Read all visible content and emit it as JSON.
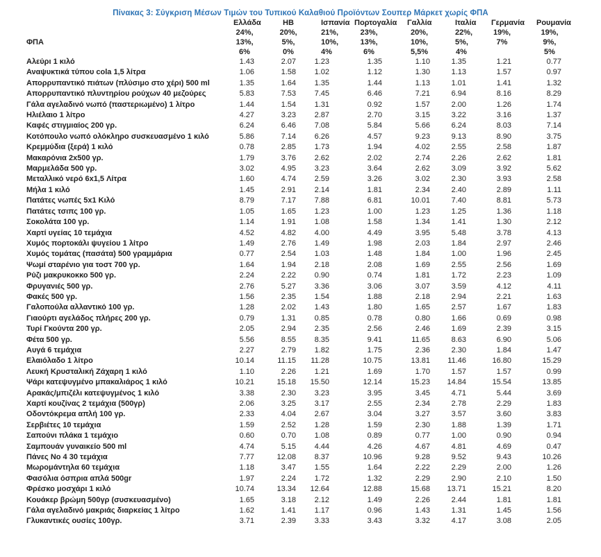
{
  "title": "Πίνακας 3: Σύγκριση Μέσων Τιμών του Τυπικού Καλαθιού Προϊόντων Σουπερ Μάρκετ χωρίς ΦΠΑ",
  "vat_label": "ΦΠΑ",
  "colors": {
    "title_blue": "#2E74B5",
    "text": "#1F1F1F",
    "background": "#FFFFFF"
  },
  "table": {
    "columns": [
      {
        "name": "Ελλάδα",
        "vat": [
          "24%,",
          "13%,",
          "6%"
        ]
      },
      {
        "name": "ΗΒ",
        "vat": [
          "20%,",
          "5%,",
          "0%"
        ]
      },
      {
        "name": "Ισπανία",
        "vat": [
          "21%,",
          "10%,",
          "4%"
        ]
      },
      {
        "name": "Πορτογαλία",
        "vat": [
          "23%,",
          "13%,",
          "6%"
        ]
      },
      {
        "name": "Γαλλία",
        "vat": [
          "20%,",
          "10%,",
          "5,5%"
        ]
      },
      {
        "name": "Ιταλία",
        "vat": [
          "22%,",
          "5%,",
          "4%"
        ]
      },
      {
        "name": "Γερμανία",
        "vat": [
          "19%,",
          "7%",
          ""
        ]
      },
      {
        "name": "Ρουμανία",
        "vat": [
          "19%,",
          "9%,",
          "5%"
        ]
      }
    ],
    "rows": [
      {
        "name": "Αλεύρι 1 κιλό",
        "values": [
          "1.43",
          "2.07",
          "1.23",
          "1.35",
          "1.10",
          "1.35",
          "1.21",
          "0.77"
        ]
      },
      {
        "name": "Αναψυκτικά τύπου cola 1,5 λίτρα",
        "values": [
          "1.06",
          "1.58",
          "1.02",
          "1.12",
          "1.30",
          "1.13",
          "1.57",
          "0.97"
        ]
      },
      {
        "name": "Απορρυπαντικό πιάτων (πλύσιμο στο χέρι) 500 ml",
        "values": [
          "1.35",
          "1.64",
          "1.35",
          "1.44",
          "1.13",
          "1.01",
          "1.41",
          "1.32"
        ]
      },
      {
        "name": "Απορρυπαντικό πλυντηρίου ρούχων 40 μεζούρες",
        "values": [
          "5.83",
          "7.53",
          "7.45",
          "6.46",
          "7.21",
          "6.94",
          "8.16",
          "8.29"
        ]
      },
      {
        "name": "Γάλα αγελαδινό νωπό (παστεριωμένο) 1 λίτρο",
        "values": [
          "1.44",
          "1.54",
          "1.31",
          "0.92",
          "1.57",
          "2.00",
          "1.26",
          "1.74"
        ]
      },
      {
        "name": "Ηλιέλαιο 1 λίτρο",
        "values": [
          "4.27",
          "3.23",
          "2.87",
          "2.70",
          "3.15",
          "3.22",
          "3.16",
          "1.37"
        ]
      },
      {
        "name": "Καφές στιγμιαίος 200 γρ.",
        "values": [
          "6.24",
          "6.46",
          "7.08",
          "5.84",
          "5.66",
          "6.24",
          "8.03",
          "7.14"
        ]
      },
      {
        "name": "Κοτόπουλο νωπό ολόκληρο συσκευασμένο 1 κιλό",
        "values": [
          "5.86",
          "7.14",
          "6.26",
          "4.57",
          "9.23",
          "9.13",
          "8.90",
          "3.75"
        ]
      },
      {
        "name": "Κρεμμύδια (ξερά) 1 κιλό",
        "values": [
          "0.78",
          "2.85",
          "1.73",
          "1.94",
          "4.02",
          "2.55",
          "2.58",
          "1.87"
        ]
      },
      {
        "name": "Μακαρόνια 2x500 γρ.",
        "values": [
          "1.79",
          "3.76",
          "2.62",
          "2.02",
          "2.74",
          "2.26",
          "2.62",
          "1.81"
        ]
      },
      {
        "name": "Μαρμελάδα 500 γρ.",
        "values": [
          "3.02",
          "4.95",
          "3.23",
          "3.64",
          "2.62",
          "3.09",
          "3.92",
          "5.62"
        ]
      },
      {
        "name": "Μεταλλικό νερό 6x1,5 Λίτρα",
        "values": [
          "1.60",
          "4.74",
          "2.59",
          "3.26",
          "3.02",
          "2.30",
          "3.93",
          "2.58"
        ]
      },
      {
        "name": "Μήλα 1 κιλό",
        "values": [
          "1.45",
          "2.91",
          "2.14",
          "1.81",
          "2.34",
          "2.40",
          "2.89",
          "1.11"
        ]
      },
      {
        "name": "Πατάτες νωπές 5x1 Κιλό",
        "values": [
          "8.79",
          "7.17",
          "7.88",
          "6.81",
          "10.01",
          "7.40",
          "8.81",
          "5.73"
        ]
      },
      {
        "name": "Πατάτες τσιπς 100 γρ.",
        "values": [
          "1.05",
          "1.65",
          "1.23",
          "1.00",
          "1.23",
          "1.25",
          "1.36",
          "1.18"
        ]
      },
      {
        "name": "Σοκολάτα 100 γρ.",
        "values": [
          "1.14",
          "1.91",
          "1.08",
          "1.58",
          "1.34",
          "1.41",
          "1.30",
          "2.12"
        ]
      },
      {
        "name": "Χαρτί υγείας 10 τεμάχια",
        "values": [
          "4.52",
          "4.82",
          "4.00",
          "4.49",
          "3.95",
          "5.48",
          "3.78",
          "4.13"
        ]
      },
      {
        "name": "Χυμός πορτοκάλι ψυγείου 1 λίτρο",
        "values": [
          "1.49",
          "2.76",
          "1.49",
          "1.98",
          "2.03",
          "1.84",
          "2.97",
          "2.46"
        ]
      },
      {
        "name": "Χυμός τομάτας (πασάτα) 500 γραμμάρια",
        "values": [
          "0.77",
          "2.54",
          "1.03",
          "1.48",
          "1.84",
          "1.00",
          "1.96",
          "2.45"
        ]
      },
      {
        "name": "Ψωμί σταρένιο για τοστ 700 γρ.",
        "values": [
          "1.64",
          "1.94",
          "2.18",
          "2.08",
          "1.69",
          "2.55",
          "2.56",
          "1.69"
        ]
      },
      {
        "name": "Ρύζι μακρυκοκκο 500 γρ.",
        "values": [
          "2.24",
          "2.22",
          "0.90",
          "0.74",
          "1.81",
          "1.72",
          "2.23",
          "1.09"
        ]
      },
      {
        "name": "Φρυγανιές 500 γρ.",
        "values": [
          "2.76",
          "5.27",
          "3.36",
          "3.06",
          "3.07",
          "3.59",
          "4.12",
          "4.11"
        ]
      },
      {
        "name": "Φακές 500 γρ.",
        "values": [
          "1.56",
          "2.35",
          "1.54",
          "1.88",
          "2.18",
          "2.94",
          "2.21",
          "1.63"
        ]
      },
      {
        "name": "Γαλοπούλα αλλαντικό 100 γρ.",
        "values": [
          "1.28",
          "2.02",
          "1.43",
          "1.80",
          "1.65",
          "2.57",
          "1.67",
          "1.83"
        ]
      },
      {
        "name": "Γιαούρτι αγελάδος πλήρες 200 γρ.",
        "values": [
          "0.79",
          "1.31",
          "0.85",
          "0.78",
          "0.80",
          "1.66",
          "0.69",
          "0.98"
        ]
      },
      {
        "name": "Τυρί Γκούντα 200 γρ.",
        "values": [
          "2.05",
          "2.94",
          "2.35",
          "2.56",
          "2.46",
          "1.69",
          "2.39",
          "3.15"
        ]
      },
      {
        "name": "Φέτα 500 γρ.",
        "values": [
          "5.56",
          "8.55",
          "8.35",
          "9.41",
          "11.65",
          "8.63",
          "6.90",
          "5.06"
        ]
      },
      {
        "name": "Αυγά 6 τεμάχια",
        "values": [
          "2.27",
          "2.79",
          "1.82",
          "1.75",
          "2.36",
          "2.30",
          "1.84",
          "1.47"
        ]
      },
      {
        "name": "Ελαιόλαδο 1 λίτρο",
        "values": [
          "10.14",
          "11.15",
          "11.28",
          "10.75",
          "13.81",
          "11.46",
          "16.80",
          "15.29"
        ]
      },
      {
        "name": "Λευκή Κρυσταλική Ζάχαρη 1 κιλό",
        "values": [
          "1.10",
          "2.26",
          "1.21",
          "1.69",
          "1.70",
          "1.57",
          "1.57",
          "0.99"
        ]
      },
      {
        "name": "Ψάρι κατεψυγμένο μπακαλιάρος 1 κιλό",
        "values": [
          "10.21",
          "15.18",
          "15.50",
          "12.14",
          "15.23",
          "14.84",
          "15.54",
          "13.85"
        ]
      },
      {
        "name": "Αρακάς/μπιζέλι κατεψυγμένος 1 κιλό",
        "values": [
          "3.38",
          "2.30",
          "3.23",
          "3.95",
          "3.45",
          "4.71",
          "5.44",
          "3.69"
        ]
      },
      {
        "name": "Χαρτί κουζίνας 2 τεμάχια (500γρ)",
        "values": [
          "2.06",
          "3.25",
          "3.17",
          "2.55",
          "2.34",
          "2.78",
          "2.29",
          "1.83"
        ]
      },
      {
        "name": "Οδοντόκρεμα απλή 100 γρ.",
        "values": [
          "2.33",
          "4.04",
          "2.67",
          "3.04",
          "3.27",
          "3.57",
          "3.60",
          "3.83"
        ]
      },
      {
        "name": "Σερβιέτες 10 τεμάχια",
        "values": [
          "1.59",
          "2.52",
          "1.28",
          "1.59",
          "2.30",
          "1.88",
          "1.39",
          "1.71"
        ]
      },
      {
        "name": "Σαπούνι  πλάκα 1 τεμάχιο",
        "values": [
          "0.60",
          "0.70",
          "1.08",
          "0.89",
          "0.77",
          "1.00",
          "0.90",
          "0.94"
        ]
      },
      {
        "name": "Σαμπουάν γυναικείο 500 ml",
        "values": [
          "4.74",
          "5.15",
          "4.44",
          "4.26",
          "4.67",
          "4.81",
          "4.69",
          "0.47"
        ]
      },
      {
        "name": "Πάνες No 4 30 τεμάχια",
        "values": [
          "7.77",
          "12.08",
          "8.37",
          "10.96",
          "9.28",
          "9.52",
          "9.43",
          "10.26"
        ]
      },
      {
        "name": "Μωρομάντηλα 60 τεμάχια",
        "values": [
          "1.18",
          "3.47",
          "1.55",
          "1.64",
          "2.22",
          "2.29",
          "2.00",
          "1.26"
        ]
      },
      {
        "name": "Φασόλια όσπρια απλά 500gr",
        "values": [
          "1.97",
          "2.24",
          "1.72",
          "1.32",
          "2.29",
          "2.90",
          "2.10",
          "1.50"
        ]
      },
      {
        "name": "Φρέσκο μοσχάρι 1 κιλό",
        "values": [
          "10.74",
          "13.34",
          "12.64",
          "12.88",
          "15.68",
          "13.71",
          "15.21",
          "8.20"
        ]
      },
      {
        "name": "Κουάκερ βρώμη 500γρ (συσκευασμένο)",
        "values": [
          "1.65",
          "3.18",
          "2.12",
          "1.49",
          "2.26",
          "2.44",
          "1.81",
          "1.81"
        ]
      },
      {
        "name": "Γάλα αγελαδινό μακριάς διαρκείας 1 λίτρο",
        "values": [
          "1.62",
          "1.41",
          "1.17",
          "0.96",
          "1.43",
          "1.31",
          "1.45",
          "1.56"
        ]
      },
      {
        "name": "Γλυκαντικές ουσίες 100γρ.",
        "values": [
          "3.71",
          "2.39",
          "3.33",
          "3.43",
          "3.32",
          "4.17",
          "3.08",
          "2.05"
        ]
      }
    ]
  }
}
